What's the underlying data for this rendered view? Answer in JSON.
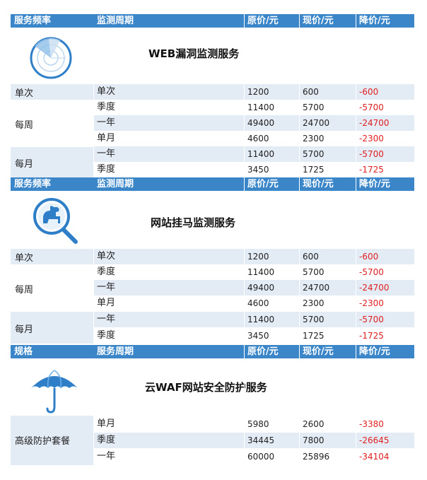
{
  "sections": [
    {
      "headers": [
        "服务频率",
        "监测周期",
        "原价/元",
        "现价/元",
        "降价/元"
      ],
      "title": "WEB漏洞监测服务",
      "icon": "radar-icon",
      "groups": [
        {
          "label": "单次",
          "rows": [
            {
              "period": "单次",
              "orig": "1200",
              "now": "600",
              "cut": "-600"
            }
          ]
        },
        {
          "label": "每周",
          "rows": [
            {
              "period": "季度",
              "orig": "11400",
              "now": "5700",
              "cut": "-5700"
            },
            {
              "period": "一年",
              "orig": "49400",
              "now": "24700",
              "cut": "-24700"
            },
            {
              "period": "单月",
              "orig": "4600",
              "now": "2300",
              "cut": "-2300"
            }
          ]
        },
        {
          "label": "每月",
          "rows": [
            {
              "period": "一年",
              "orig": "11400",
              "now": "5700",
              "cut": "-5700"
            },
            {
              "period": "季度",
              "orig": "3450",
              "now": "1725",
              "cut": "-1725"
            }
          ]
        }
      ]
    },
    {
      "headers": [
        "服务频率",
        "监测周期",
        "原价/元",
        "现价/元",
        "降价/元"
      ],
      "title": "网站挂马监测服务",
      "icon": "magnifier-horse-icon",
      "groups": [
        {
          "label": "单次",
          "rows": [
            {
              "period": "单次",
              "orig": "1200",
              "now": "600",
              "cut": "-600"
            }
          ]
        },
        {
          "label": "每周",
          "rows": [
            {
              "period": "季度",
              "orig": "11400",
              "now": "5700",
              "cut": "-5700"
            },
            {
              "period": "一年",
              "orig": "49400",
              "now": "24700",
              "cut": "-24700"
            },
            {
              "period": "单月",
              "orig": "4600",
              "now": "2300",
              "cut": "-2300"
            }
          ]
        },
        {
          "label": "每月",
          "rows": [
            {
              "period": "一年",
              "orig": "11400",
              "now": "5700",
              "cut": "-5700"
            },
            {
              "period": "季度",
              "orig": "3450",
              "now": "1725",
              "cut": "-1725"
            }
          ]
        }
      ]
    },
    {
      "headers": [
        "规格",
        "服务周期",
        "原价/元",
        "现价/元",
        "降价/元"
      ],
      "title": "云WAF网站安全防护服务",
      "icon": "umbrella-icon",
      "groups": [
        {
          "label": "高级防护套餐",
          "rows": [
            {
              "period": "单月",
              "orig": "5980",
              "now": "2600",
              "cut": "-3380"
            },
            {
              "period": "季度",
              "orig": "34445",
              "now": "7800",
              "cut": "-26645"
            },
            {
              "period": "一年",
              "orig": "60000",
              "now": "25896",
              "cut": "-34104"
            }
          ]
        }
      ]
    }
  ]
}
